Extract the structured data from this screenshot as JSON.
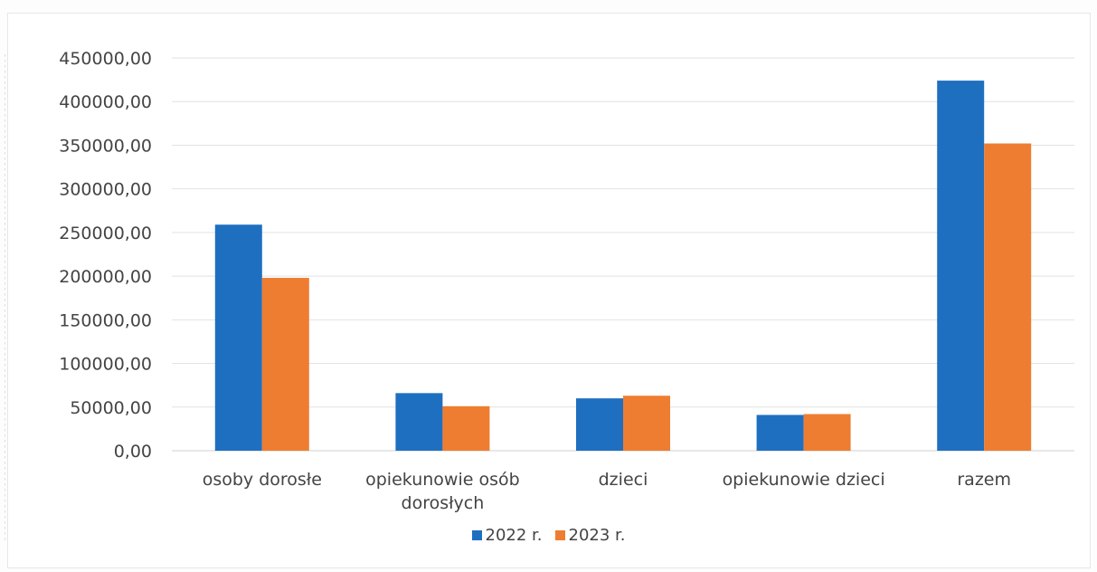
{
  "chart_data": {
    "type": "bar",
    "categories": [
      "osoby dorosłe",
      "opiekunowie osób dorosłych",
      "dzieci",
      "opiekunowie dzieci",
      "razem"
    ],
    "category_lines": [
      [
        "osoby dorosłe"
      ],
      [
        "opiekunowie osób",
        "dorosłych"
      ],
      [
        "dzieci"
      ],
      [
        "opiekunowie dzieci"
      ],
      [
        "razem"
      ]
    ],
    "series": [
      {
        "name": "2022 r.",
        "color": "#1f6fc0",
        "values": [
          259000,
          66000,
          60000,
          41000,
          424000
        ]
      },
      {
        "name": "2023 r.",
        "color": "#ee7d31",
        "values": [
          198000,
          51000,
          63000,
          42000,
          352000
        ]
      }
    ],
    "ylim": [
      0,
      450000
    ],
    "yticks": [
      "0,00",
      "50000,00",
      "100000,00",
      "150000,00",
      "200000,00",
      "250000,00",
      "300000,00",
      "350000,00",
      "400000,00",
      "450000,00"
    ],
    "grid": true,
    "legend_position": "bottom",
    "title": "",
    "xlabel": "",
    "ylabel": ""
  }
}
